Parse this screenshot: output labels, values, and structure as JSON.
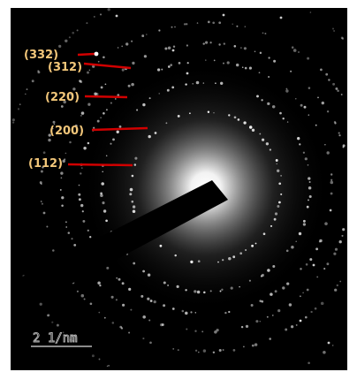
{
  "image": {
    "type": "SAED pattern",
    "background_color": "#000000",
    "ring_color": "#ffffff",
    "label_color": "#f3c77a",
    "marker_color": "#d10000"
  },
  "ring_labels": [
    {
      "text": "(332)"
    },
    {
      "text": "(312)"
    },
    {
      "text": "(220)"
    },
    {
      "text": "(200)"
    },
    {
      "text": "(112)"
    }
  ],
  "scale_bar": {
    "label": "2 1/nm"
  }
}
